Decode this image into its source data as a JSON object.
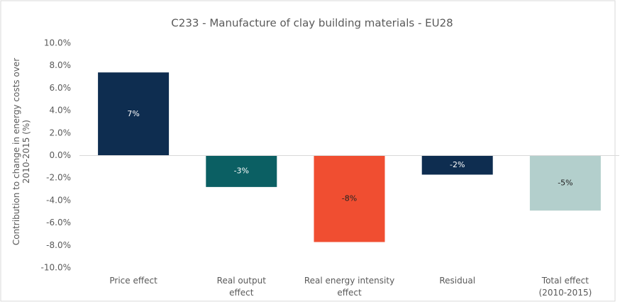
{
  "chart_data": {
    "type": "bar",
    "title": "C233 - Manufacture of clay building materials - EU28",
    "y_label": "Contribution to change in energy costs over 2010-2015 (%)",
    "categories": [
      "Price effect",
      "Real output effect",
      "Real energy intensity effect",
      "Residual",
      "Total effect (2010-2015)"
    ],
    "values": [
      7.4,
      -2.8,
      -7.7,
      -1.7,
      -4.9
    ],
    "value_labels": [
      "7%",
      "-3%",
      "-8%",
      "-2%",
      "-5%"
    ],
    "colors": [
      "#0e2d50",
      "#0b5f63",
      "#f04e31",
      "#0e2d50",
      "#b3cfcc"
    ],
    "ylim": [
      -10,
      10
    ],
    "yticks": [
      {
        "value": -10,
        "label": "-10.0%"
      },
      {
        "value": -8,
        "label": "-8.0%"
      },
      {
        "value": -6,
        "label": "-6.0%"
      },
      {
        "value": -4,
        "label": "-4.0%"
      },
      {
        "value": -2,
        "label": "-2.0%"
      },
      {
        "value": 0,
        "label": "0.0%"
      },
      {
        "value": 2,
        "label": "2.0%"
      },
      {
        "value": 4,
        "label": "4.0%"
      },
      {
        "value": 6,
        "label": "6.0%"
      },
      {
        "value": 8,
        "label": "8.0%"
      },
      {
        "value": 10,
        "label": "10.0%"
      }
    ],
    "grid": false
  }
}
